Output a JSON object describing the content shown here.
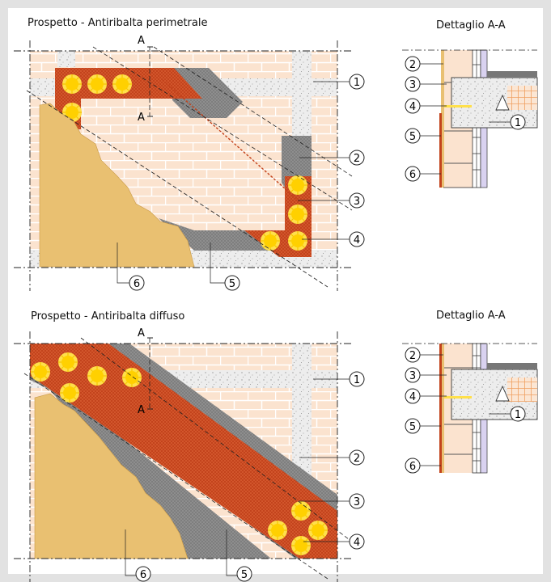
{
  "top": {
    "title": "Prospetto - Antiribalta perimetrale",
    "detail_title": "Dettaglio A-A",
    "section_mark": "A",
    "callouts": [
      "1",
      "2",
      "3",
      "4",
      "5",
      "6"
    ]
  },
  "bottom": {
    "title": "Prospetto - Antiribalta diffuso",
    "detail_title": "Dettaglio A-A",
    "section_mark": "A",
    "callouts": [
      "1",
      "2",
      "3",
      "4",
      "5",
      "6"
    ]
  },
  "colors": {
    "brick": "#fbe3cf",
    "brick_joint": "#ffffff",
    "plaster": "#e9c071",
    "mesh": "#c3431c",
    "mortar": "#8c8c8c",
    "concrete": "#e6e6e6",
    "anchor": "#ffd700"
  }
}
